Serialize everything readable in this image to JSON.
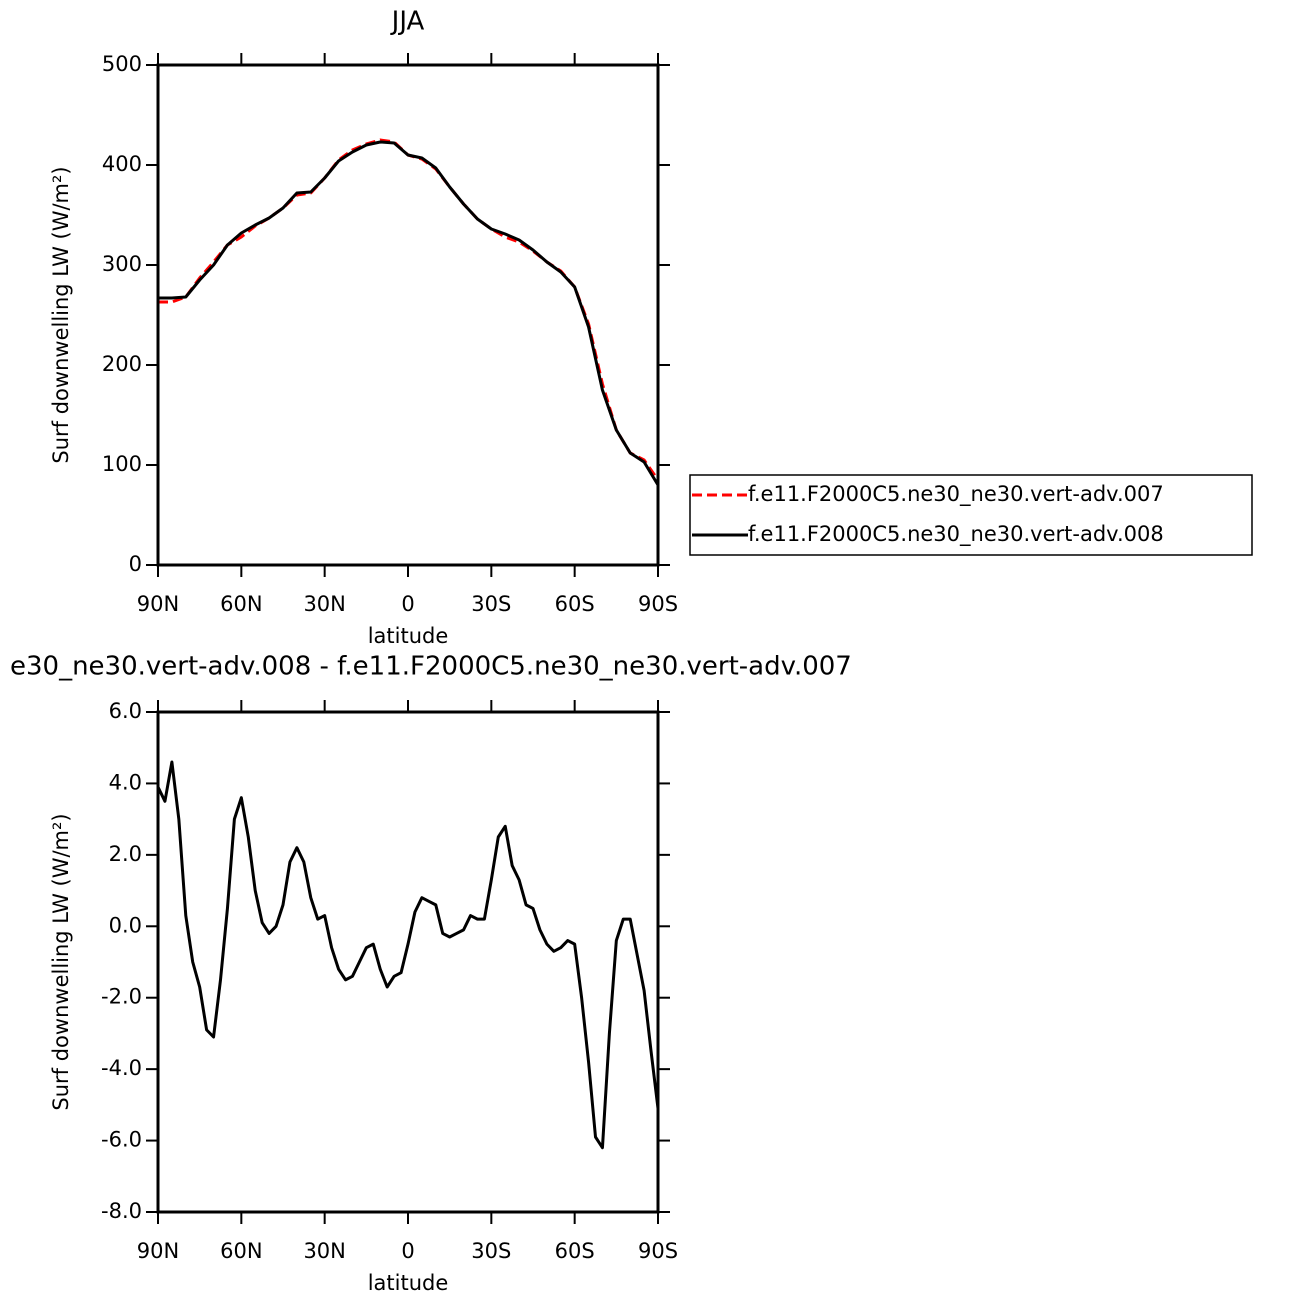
{
  "chart_data": [
    {
      "type": "line",
      "title": "JJA",
      "x_label": "latitude",
      "y_label": "Surf downwelling LW (W/m²)",
      "xlim": [
        90,
        -90
      ],
      "xticks": [
        {
          "value": 90,
          "label": "90N"
        },
        {
          "value": 60,
          "label": "60N"
        },
        {
          "value": 30,
          "label": "30N"
        },
        0,
        {
          "value": -30,
          "label": "30S"
        },
        {
          "value": -60,
          "label": "60S"
        },
        {
          "value": -90,
          "label": "90S"
        }
      ],
      "ylim": [
        0,
        500
      ],
      "yticks": [
        0,
        100,
        200,
        300,
        400,
        500
      ],
      "legend": "outside-right",
      "x": [
        90,
        85,
        80,
        75,
        70,
        65,
        60,
        55,
        50,
        45,
        40,
        35,
        30,
        25,
        20,
        15,
        10,
        5,
        0,
        -5,
        -10,
        -15,
        -20,
        -25,
        -30,
        -35,
        -40,
        -45,
        -50,
        -55,
        -60,
        -65,
        -70,
        -75,
        -80,
        -85,
        -90
      ],
      "series": [
        {
          "name": "f.e11.F2000C5.ne30_ne30.vert-adv.007",
          "color": "#ff0000",
          "line_style": "dashed",
          "values": [
            263,
            263,
            268,
            287,
            303,
            320,
            328,
            339,
            347,
            357,
            370,
            372,
            387,
            405,
            415,
            421,
            425,
            423,
            410,
            406,
            396,
            378,
            361,
            346,
            336,
            328,
            323,
            314,
            303,
            294,
            278,
            241,
            181,
            135,
            112,
            105,
            85
          ]
        },
        {
          "name": "f.e11.F2000C5.ne30_ne30.vert-adv.008",
          "color": "#000000",
          "line_style": "solid",
          "values": [
            267,
            267,
            268,
            285,
            300,
            320,
            332,
            340,
            347,
            357,
            372,
            373,
            387,
            404,
            413,
            420,
            423,
            422,
            410,
            407,
            397,
            378,
            361,
            346,
            336,
            331,
            325,
            315,
            303,
            293,
            278,
            238,
            175,
            135,
            112,
            103,
            80
          ]
        }
      ]
    },
    {
      "type": "line",
      "title": "e30_ne30.vert-adv.008 - f.e11.F2000C5.ne30_ne30.vert-adv.007",
      "x_label": "latitude",
      "y_label": "Surf downwelling LW (W/m²)",
      "xlim": [
        90,
        -90
      ],
      "xticks": [
        {
          "value": 90,
          "label": "90N"
        },
        {
          "value": 60,
          "label": "60N"
        },
        {
          "value": 30,
          "label": "30N"
        },
        0,
        {
          "value": -30,
          "label": "30S"
        },
        {
          "value": -60,
          "label": "60S"
        },
        {
          "value": -90,
          "label": "90S"
        }
      ],
      "ylim": [
        -8,
        6
      ],
      "yticks": [
        {
          "value": -8,
          "label": "-8.0"
        },
        {
          "value": -6,
          "label": "-6.0"
        },
        {
          "value": -4,
          "label": "-4.0"
        },
        {
          "value": -2,
          "label": "-2.0"
        },
        {
          "value": 0,
          "label": "0.0"
        },
        {
          "value": 2,
          "label": "2.0"
        },
        {
          "value": 4,
          "label": "4.0"
        },
        {
          "value": 6,
          "label": "6.0"
        }
      ],
      "x": [
        90,
        87.5,
        85,
        82.5,
        80,
        77.5,
        75,
        72.5,
        70,
        67.5,
        65,
        62.5,
        60,
        57.5,
        55,
        52.5,
        50,
        47.5,
        45,
        42.5,
        40,
        37.5,
        35,
        32.5,
        30,
        27.5,
        25,
        22.5,
        20,
        17.5,
        15,
        12.5,
        10,
        7.5,
        5,
        2.5,
        0,
        -2.5,
        -5,
        -7.5,
        -10,
        -12.5,
        -15,
        -17.5,
        -20,
        -22.5,
        -25,
        -27.5,
        -30,
        -32.5,
        -35,
        -37.5,
        -40,
        -42.5,
        -45,
        -47.5,
        -50,
        -52.5,
        -55,
        -57.5,
        -60,
        -62.5,
        -65,
        -67.5,
        -70,
        -72.5,
        -75,
        -77.5,
        -80,
        -82.5,
        -85,
        -87.5,
        -90
      ],
      "series": [
        {
          "color": "#000000",
          "line_style": "solid",
          "values": [
            3.9,
            3.5,
            4.6,
            3.0,
            0.3,
            -1.0,
            -1.7,
            -2.9,
            -3.1,
            -1.5,
            0.5,
            3.0,
            3.6,
            2.5,
            1.0,
            0.1,
            -0.2,
            0.0,
            0.6,
            1.8,
            2.2,
            1.8,
            0.8,
            0.2,
            0.3,
            -0.6,
            -1.2,
            -1.5,
            -1.4,
            -1.0,
            -0.6,
            -0.5,
            -1.2,
            -1.7,
            -1.4,
            -1.3,
            -0.5,
            0.4,
            0.8,
            0.7,
            0.6,
            -0.2,
            -0.3,
            -0.2,
            -0.1,
            0.3,
            0.2,
            0.2,
            1.3,
            2.5,
            2.8,
            1.7,
            1.3,
            0.6,
            0.5,
            -0.1,
            -0.5,
            -0.7,
            -0.6,
            -0.4,
            -0.5,
            -2.0,
            -3.8,
            -5.9,
            -6.2,
            -3.0,
            -0.4,
            0.2,
            0.2,
            -0.8,
            -1.8,
            -3.5,
            -5.1
          ]
        }
      ]
    }
  ]
}
